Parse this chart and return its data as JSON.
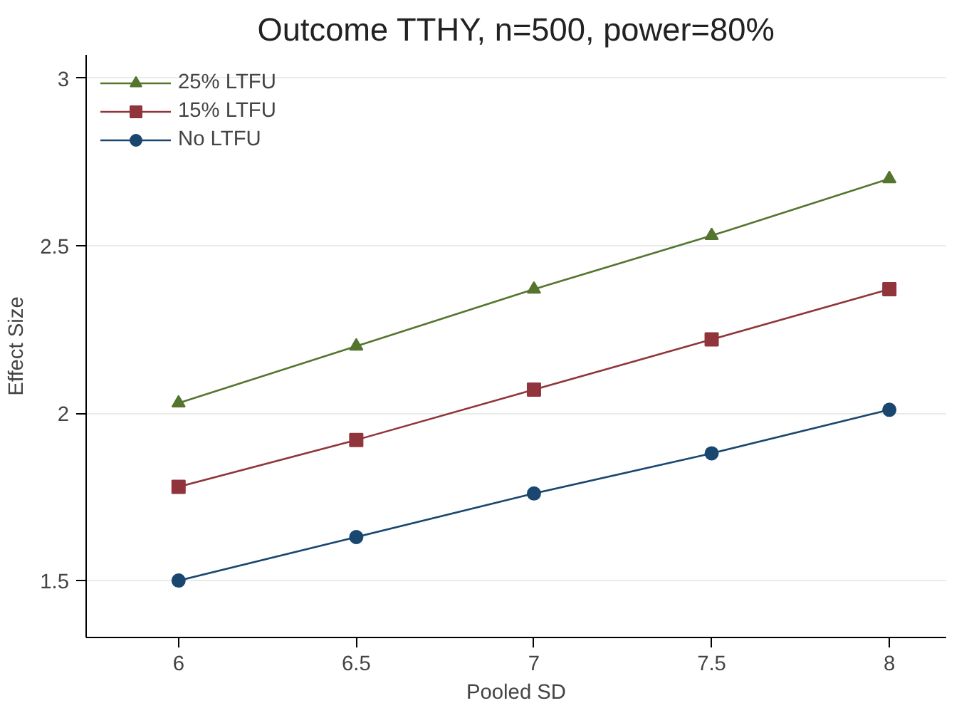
{
  "chart_data": {
    "type": "line",
    "title": "Outcome TTHY, n=500, power=80%",
    "xlabel": "Pooled SD",
    "ylabel": "Effect Size",
    "x": [
      6,
      6.5,
      7,
      7.5,
      8
    ],
    "series": [
      {
        "name": "25% LTFU",
        "color": "#55752f",
        "marker": "triangle",
        "values": [
          2.03,
          2.2,
          2.37,
          2.53,
          2.7
        ]
      },
      {
        "name": "15% LTFU",
        "color": "#90353b",
        "marker": "square",
        "values": [
          1.78,
          1.92,
          2.07,
          2.22,
          2.37
        ]
      },
      {
        "name": "No LTFU",
        "color": "#1a476f",
        "marker": "circle",
        "values": [
          1.5,
          1.63,
          1.76,
          1.88,
          2.01
        ]
      }
    ],
    "xlim": [
      5.74,
      8.16
    ],
    "ylim": [
      1.33,
      3.07
    ],
    "xticks": [
      6,
      6.5,
      7,
      7.5,
      8
    ],
    "yticks": [
      1.5,
      2,
      2.5,
      3
    ],
    "grid": "y",
    "legend": "top left",
    "line_style": "solid"
  }
}
